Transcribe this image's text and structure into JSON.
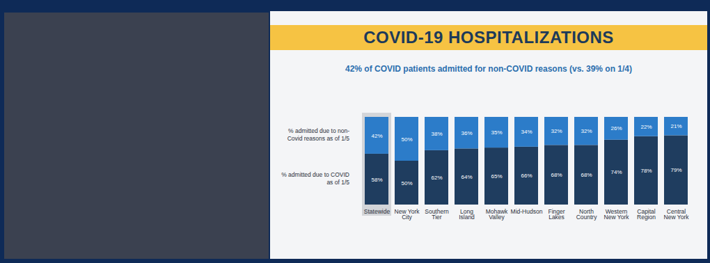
{
  "chart_data": {
    "type": "bar",
    "stacked": true,
    "data_labels": true,
    "tick_labels": "x",
    "title": "COVID-19 HOSPITALIZATIONS",
    "subtitle": "42% of COVID patients admitted for non-COVID reasons (vs. 39% on 1/4)",
    "categories": [
      "Statewide",
      "New York City",
      "Southern Tier",
      "Long Island",
      "Mohawk Valley",
      "Mid-Hudson",
      "Finger Lakes",
      "North Country",
      "Western New York",
      "Capital Region",
      "Central New York"
    ],
    "ylim": [
      0,
      100
    ],
    "series": [
      {
        "name": "% admitted due to COVID as of 1/5",
        "color": "#1f3d5f",
        "values": [
          58,
          50,
          62,
          64,
          65,
          66,
          68,
          68,
          74,
          78,
          79
        ],
        "value_labels": [
          "58%",
          "50%",
          "62%",
          "64%",
          "65%",
          "66%",
          "68%",
          "68%",
          "74%",
          "78%",
          "79%"
        ]
      },
      {
        "name": "% admitted due to non-Covid reasons as of 1/5",
        "color": "#2c7cc9",
        "values": [
          42,
          50,
          38,
          36,
          35,
          34,
          32,
          32,
          26,
          22,
          21
        ],
        "value_labels": [
          "42%",
          "50%",
          "38%",
          "36%",
          "35%",
          "34%",
          "32%",
          "32%",
          "26%",
          "22%",
          "21%"
        ]
      }
    ]
  }
}
